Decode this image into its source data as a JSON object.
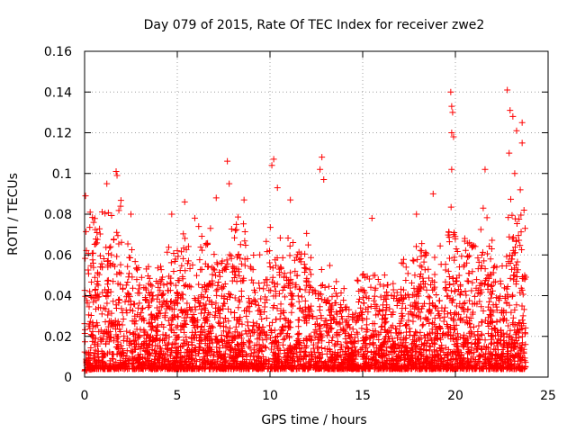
{
  "chart_data": {
    "type": "scatter",
    "title": "Day 079 of 2015, Rate Of TEC Index for receiver zwe2",
    "xlabel": "GPS time / hours",
    "ylabel": "ROTI / TECUs",
    "xlim": [
      0,
      25
    ],
    "ylim": [
      0,
      0.16
    ],
    "x_ticks": [
      "0",
      "5",
      "10",
      "15",
      "20",
      "25"
    ],
    "y_ticks": [
      "0",
      "0.02",
      "0.04",
      "0.06",
      "0.08",
      "0.1",
      "0.12",
      "0.14",
      "0.16"
    ],
    "grid": true,
    "legend": "none",
    "marker": "+",
    "color": "#ff0000",
    "x_range_observed": [
      0,
      23.8
    ],
    "notable_points": [
      {
        "x": 0.05,
        "y": 0.089
      },
      {
        "x": 0.3,
        "y": 0.081
      },
      {
        "x": 1.2,
        "y": 0.095
      },
      {
        "x": 1.7,
        "y": 0.101
      },
      {
        "x": 1.75,
        "y": 0.099
      },
      {
        "x": 2.5,
        "y": 0.08
      },
      {
        "x": 4.7,
        "y": 0.08
      },
      {
        "x": 5.4,
        "y": 0.086
      },
      {
        "x": 7.1,
        "y": 0.088
      },
      {
        "x": 7.7,
        "y": 0.106
      },
      {
        "x": 7.8,
        "y": 0.095
      },
      {
        "x": 8.6,
        "y": 0.087
      },
      {
        "x": 10.2,
        "y": 0.107
      },
      {
        "x": 10.1,
        "y": 0.104
      },
      {
        "x": 10.4,
        "y": 0.093
      },
      {
        "x": 11.1,
        "y": 0.087
      },
      {
        "x": 12.8,
        "y": 0.108
      },
      {
        "x": 12.7,
        "y": 0.102
      },
      {
        "x": 12.9,
        "y": 0.097
      },
      {
        "x": 15.5,
        "y": 0.078
      },
      {
        "x": 17.9,
        "y": 0.08
      },
      {
        "x": 18.8,
        "y": 0.09
      },
      {
        "x": 19.75,
        "y": 0.14
      },
      {
        "x": 19.8,
        "y": 0.133
      },
      {
        "x": 19.85,
        "y": 0.13
      },
      {
        "x": 19.8,
        "y": 0.12
      },
      {
        "x": 19.9,
        "y": 0.118
      },
      {
        "x": 19.8,
        "y": 0.102
      },
      {
        "x": 21.6,
        "y": 0.102
      },
      {
        "x": 21.5,
        "y": 0.083
      },
      {
        "x": 22.8,
        "y": 0.141
      },
      {
        "x": 22.95,
        "y": 0.131
      },
      {
        "x": 23.1,
        "y": 0.128
      },
      {
        "x": 23.3,
        "y": 0.121
      },
      {
        "x": 23.6,
        "y": 0.125
      },
      {
        "x": 23.6,
        "y": 0.115
      },
      {
        "x": 22.9,
        "y": 0.11
      },
      {
        "x": 23.2,
        "y": 0.1
      },
      {
        "x": 23.5,
        "y": 0.092
      },
      {
        "x": 23.7,
        "y": 0.082
      }
    ],
    "dense_envelope": {
      "x": [
        0,
        0.5,
        1,
        1.5,
        2,
        2.5,
        3,
        3.5,
        4,
        4.5,
        5,
        5.5,
        6,
        6.5,
        7,
        7.5,
        8,
        8.5,
        9,
        9.5,
        10,
        10.5,
        11,
        11.5,
        12,
        12.5,
        13,
        13.5,
        14,
        14.5,
        15,
        15.5,
        16,
        16.5,
        17,
        17.5,
        18,
        18.5,
        19,
        19.5,
        20,
        20.5,
        21,
        21.5,
        22,
        22.5,
        23,
        23.5,
        23.8
      ],
      "y_min": [
        0.003,
        0.004,
        0.004,
        0.004,
        0.004,
        0.004,
        0.004,
        0.004,
        0.004,
        0.004,
        0.004,
        0.004,
        0.004,
        0.004,
        0.004,
        0.004,
        0.004,
        0.004,
        0.004,
        0.004,
        0.004,
        0.004,
        0.004,
        0.004,
        0.004,
        0.004,
        0.004,
        0.004,
        0.004,
        0.004,
        0.004,
        0.004,
        0.004,
        0.004,
        0.004,
        0.004,
        0.004,
        0.004,
        0.004,
        0.004,
        0.004,
        0.004,
        0.004,
        0.004,
        0.004,
        0.004,
        0.004,
        0.004,
        0.004
      ],
      "y_typical_max": [
        0.06,
        0.075,
        0.07,
        0.07,
        0.08,
        0.065,
        0.05,
        0.05,
        0.05,
        0.055,
        0.06,
        0.065,
        0.065,
        0.06,
        0.07,
        0.06,
        0.065,
        0.07,
        0.05,
        0.055,
        0.07,
        0.065,
        0.06,
        0.055,
        0.06,
        0.05,
        0.045,
        0.045,
        0.04,
        0.04,
        0.05,
        0.05,
        0.045,
        0.045,
        0.05,
        0.05,
        0.065,
        0.06,
        0.05,
        0.06,
        0.075,
        0.07,
        0.065,
        0.07,
        0.06,
        0.045,
        0.08,
        0.08,
        0.06
      ]
    }
  }
}
